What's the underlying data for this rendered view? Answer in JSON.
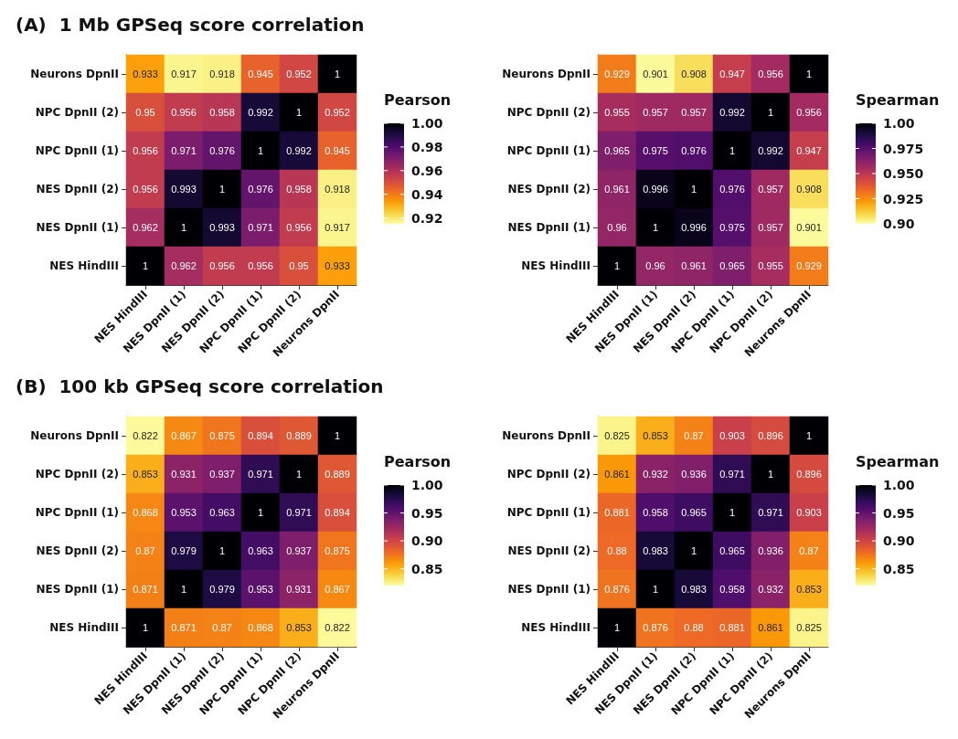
{
  "chart_data": [
    {
      "type": "heatmap",
      "title": "(A)  1 Mb GPSeq score correlation",
      "clabel": "Pearson",
      "data_labels": true,
      "categories": [
        "NES HindIII",
        "NES DpnII (1)",
        "NES DpnII (2)",
        "NPC DpnII (1)",
        "NPC DpnII (2)",
        "Neurons DpnII"
      ],
      "y_categories": [
        "Neurons DpnII",
        "NPC DpnII (2)",
        "NPC DpnII (1)",
        "NES DpnII (2)",
        "NES DpnII (1)",
        "NES HindIII"
      ],
      "cells": [
        [
          0.933,
          0.917,
          0.918,
          0.945,
          0.952,
          1
        ],
        [
          0.95,
          0.956,
          0.958,
          0.992,
          1,
          0.952
        ],
        [
          0.956,
          0.971,
          0.976,
          1,
          0.992,
          0.945
        ],
        [
          0.956,
          0.993,
          1,
          0.976,
          0.958,
          0.918
        ],
        [
          0.962,
          1,
          0.993,
          0.971,
          0.956,
          0.917
        ],
        [
          1,
          0.962,
          0.956,
          0.956,
          0.95,
          0.933
        ]
      ],
      "clim": [
        0.915,
        1
      ],
      "cticks": [
        {
          "value": 0.92,
          "label": "0.92"
        },
        {
          "value": 0.94,
          "label": "0.94"
        },
        {
          "value": 0.96,
          "label": "0.96"
        },
        {
          "value": 0.98,
          "label": "0.98"
        },
        {
          "value": 1,
          "label": "1.00"
        }
      ]
    },
    {
      "type": "heatmap",
      "clabel": "Spearman",
      "data_labels": true,
      "categories": [
        "NES HindIII",
        "NES DpnII (1)",
        "NES DpnII (2)",
        "NPC DpnII (1)",
        "NPC DpnII (2)",
        "Neurons DpnII"
      ],
      "y_categories": [
        "Neurons DpnII",
        "NPC DpnII (2)",
        "NPC DpnII (1)",
        "NES DpnII (2)",
        "NES DpnII (1)",
        "NES HindIII"
      ],
      "cells": [
        [
          0.929,
          0.901,
          0.908,
          0.947,
          0.956,
          1
        ],
        [
          0.955,
          0.957,
          0.957,
          0.992,
          1,
          0.956
        ],
        [
          0.965,
          0.975,
          0.976,
          1,
          0.992,
          0.947
        ],
        [
          0.961,
          0.996,
          1,
          0.976,
          0.957,
          0.908
        ],
        [
          0.96,
          1,
          0.996,
          0.975,
          0.957,
          0.901
        ],
        [
          1,
          0.96,
          0.961,
          0.965,
          0.955,
          0.929
        ]
      ],
      "clim": [
        0.9,
        1
      ],
      "cticks": [
        {
          "value": 0.9,
          "label": "0.90"
        },
        {
          "value": 0.925,
          "label": "0.925"
        },
        {
          "value": 0.95,
          "label": "0.950"
        },
        {
          "value": 0.975,
          "label": "0.975"
        },
        {
          "value": 1,
          "label": "1.00"
        }
      ]
    },
    {
      "type": "heatmap",
      "title": "(B)  100 kb GPSeq score correlation",
      "clabel": "Pearson",
      "data_labels": true,
      "categories": [
        "NES HindIII",
        "NES DpnII (1)",
        "NES DpnII (2)",
        "NPC DpnII (1)",
        "NPC DpnII (2)",
        "Neurons DpnII"
      ],
      "y_categories": [
        "Neurons DpnII",
        "NPC DpnII (2)",
        "NPC DpnII (1)",
        "NES DpnII (2)",
        "NES DpnII (1)",
        "NES HindIII"
      ],
      "cells": [
        [
          0.822,
          0.867,
          0.875,
          0.894,
          0.889,
          1
        ],
        [
          0.853,
          0.931,
          0.937,
          0.971,
          1,
          0.889
        ],
        [
          0.868,
          0.953,
          0.963,
          1,
          0.971,
          0.894
        ],
        [
          0.87,
          0.979,
          1,
          0.963,
          0.937,
          0.875
        ],
        [
          0.871,
          1,
          0.979,
          0.953,
          0.931,
          0.867
        ],
        [
          1,
          0.871,
          0.87,
          0.868,
          0.853,
          0.822
        ]
      ],
      "clim": [
        0.82,
        1
      ],
      "cticks": [
        {
          "value": 0.85,
          "label": "0.85"
        },
        {
          "value": 0.9,
          "label": "0.90"
        },
        {
          "value": 0.95,
          "label": "0.95"
        },
        {
          "value": 1,
          "label": "1.00"
        }
      ]
    },
    {
      "type": "heatmap",
      "clabel": "Spearman",
      "data_labels": true,
      "categories": [
        "NES HindIII",
        "NES DpnII (1)",
        "NES DpnII (2)",
        "NPC DpnII (1)",
        "NPC DpnII (2)",
        "Neurons DpnII"
      ],
      "y_categories": [
        "Neurons DpnII",
        "NPC DpnII (2)",
        "NPC DpnII (1)",
        "NES DpnII (2)",
        "NES DpnII (1)",
        "NES HindIII"
      ],
      "cells": [
        [
          0.825,
          0.853,
          0.87,
          0.903,
          0.896,
          1
        ],
        [
          0.861,
          0.932,
          0.936,
          0.971,
          1,
          0.896
        ],
        [
          0.881,
          0.958,
          0.965,
          1,
          0.971,
          0.903
        ],
        [
          0.88,
          0.983,
          1,
          0.965,
          0.936,
          0.87
        ],
        [
          0.876,
          1,
          0.983,
          0.958,
          0.932,
          0.853
        ],
        [
          1,
          0.876,
          0.88,
          0.881,
          0.861,
          0.825
        ]
      ],
      "clim": [
        0.82,
        1
      ],
      "cticks": [
        {
          "value": 0.85,
          "label": "0.85"
        },
        {
          "value": 0.9,
          "label": "0.90"
        },
        {
          "value": 0.95,
          "label": "0.95"
        },
        {
          "value": 1,
          "label": "1.00"
        }
      ]
    }
  ]
}
